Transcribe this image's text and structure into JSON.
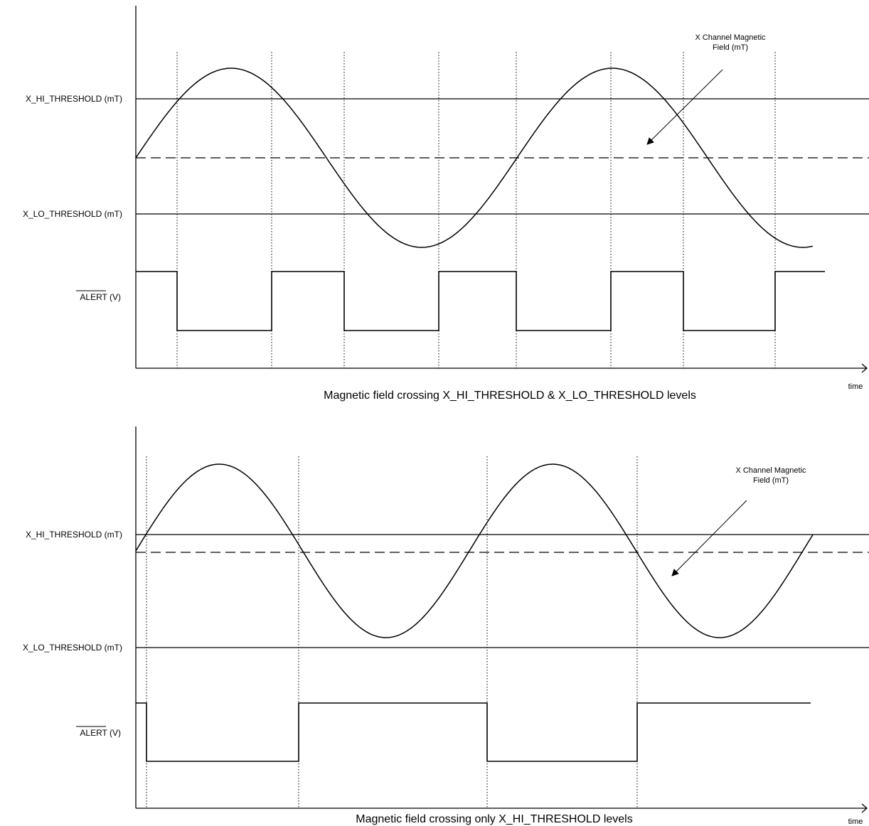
{
  "labels": {
    "x_hi_threshold": "X_HI_THRESHOLD (mT)",
    "x_lo_threshold": "X_LO_THRESHOLD (mT)",
    "alert_name": "ALERT",
    "alert_unit": " (V)",
    "time": "time",
    "field_line1": "X Channel Magnetic",
    "field_line2": "Field (mT)"
  },
  "captions": {
    "top": "Magnetic field crossing X_HI_THRESHOLD & X_LO_THRESHOLD levels",
    "bottom": "Magnetic field crossing only X_HI_THRESHOLD levels"
  }
}
